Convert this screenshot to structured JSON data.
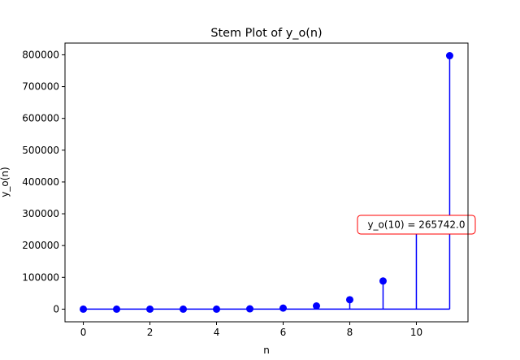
{
  "chart_data": {
    "type": "stem",
    "title": "Stem Plot of y_o(n)",
    "xlabel": "n",
    "ylabel": "y_o(n)",
    "xlim": [
      -0.55,
      11.55
    ],
    "ylim": [
      -39854,
      836938
    ],
    "xticks": [
      0,
      2,
      4,
      6,
      8,
      10
    ],
    "yticks": [
      0,
      100000,
      200000,
      300000,
      400000,
      500000,
      600000,
      700000,
      800000
    ],
    "xtick_labels": [
      "0",
      "2",
      "4",
      "6",
      "8",
      "10"
    ],
    "ytick_labels": [
      "0",
      "100000",
      "200000",
      "300000",
      "400000",
      "500000",
      "600000",
      "700000",
      "800000"
    ],
    "series": [
      {
        "x": [
          0,
          1,
          2,
          3,
          4,
          5,
          6,
          7,
          8,
          9,
          10,
          11
        ],
        "values": [
          -1,
          -3,
          -2,
          -2,
          -2,
          1000,
          3280,
          9840,
          29523,
          88572,
          265742,
          797226
        ],
        "color": "#0000ff"
      }
    ],
    "annotations": [
      {
        "x": 10,
        "y": 265742,
        "text": "y_o(10) = 265742.0",
        "border_color": "#ff0000"
      }
    ],
    "grid": false
  }
}
